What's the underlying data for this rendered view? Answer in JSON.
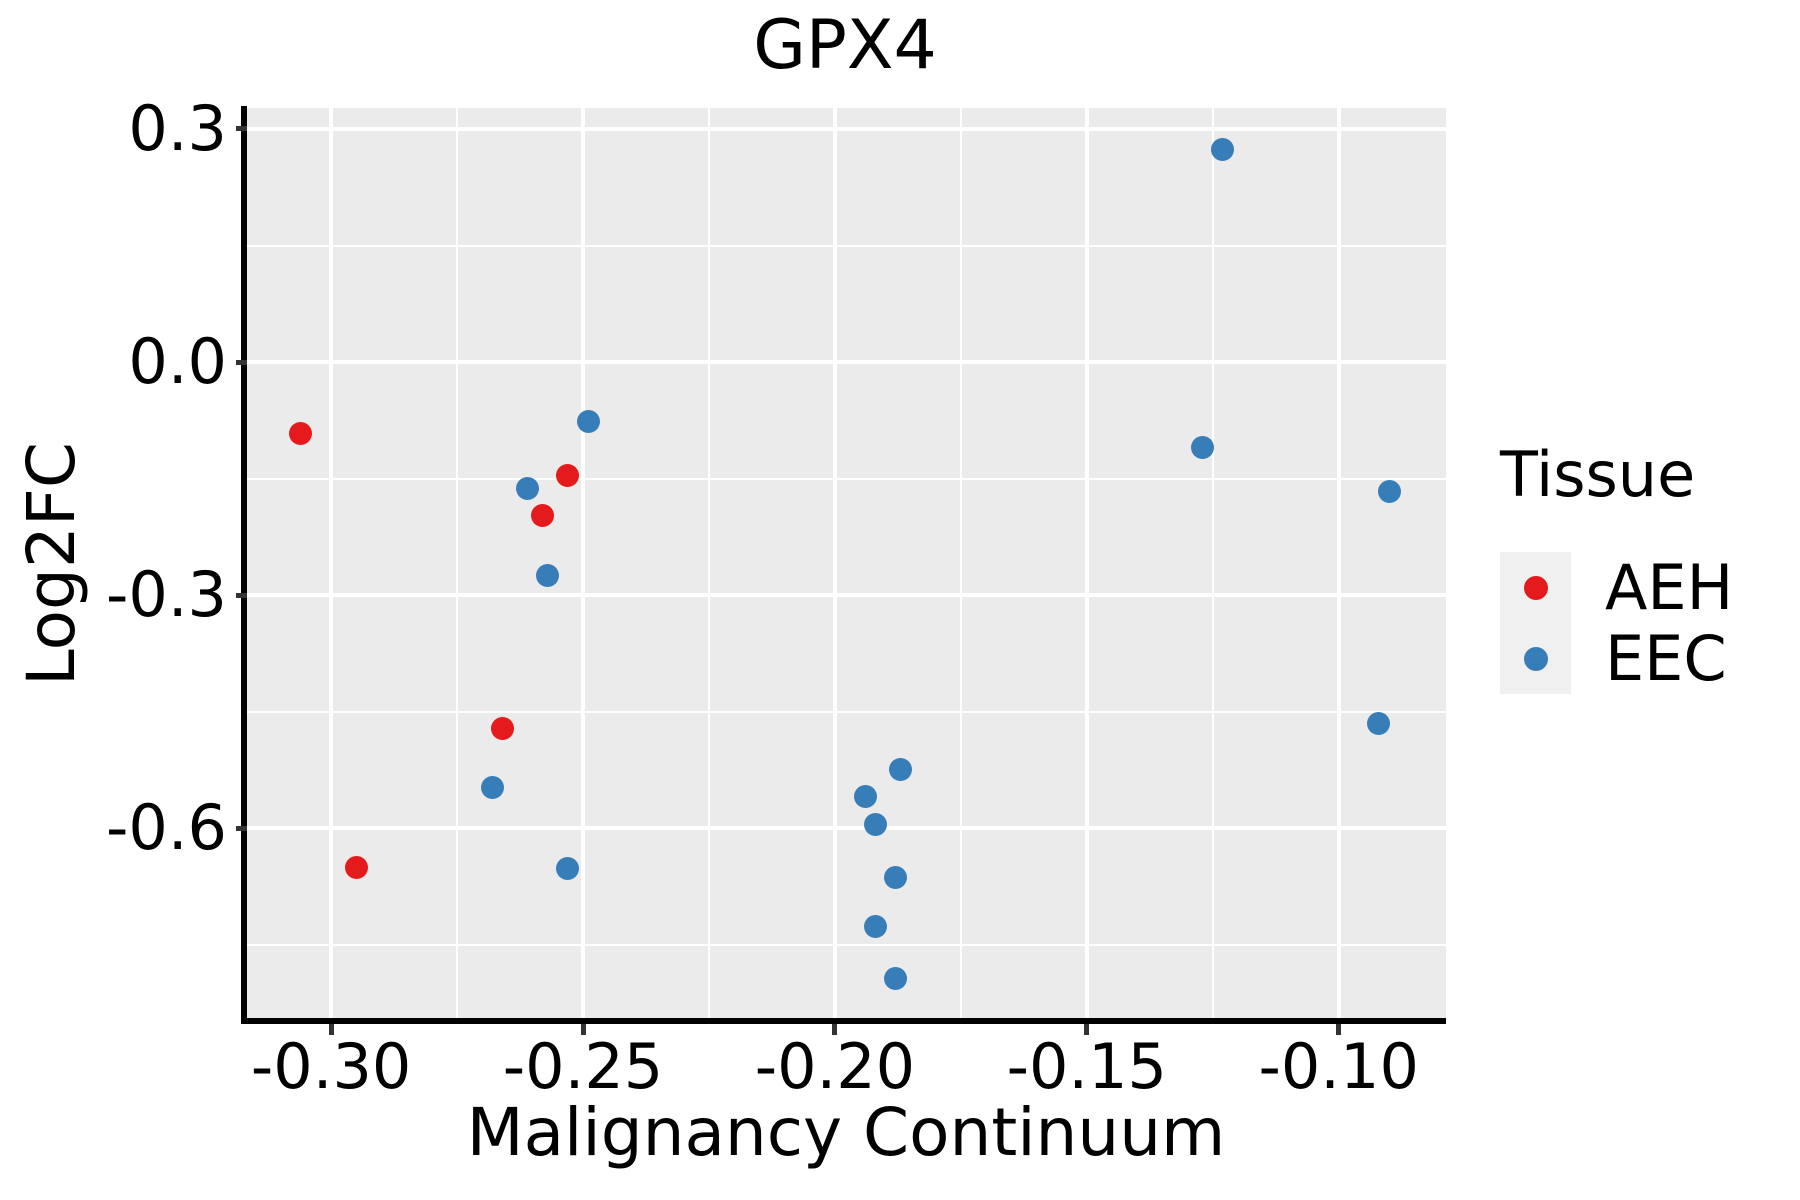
{
  "title": "GPX4",
  "chart_data": {
    "type": "scatter",
    "title": "GPX4",
    "xlabel": "Malignancy Continuum",
    "ylabel": "Log2FC",
    "xlim": [
      -0.3167,
      -0.0787
    ],
    "ylim": [
      -0.848,
      0.327
    ],
    "grid": true,
    "legend_position": "right",
    "x_major_ticks": [
      -0.3,
      -0.25,
      -0.2,
      -0.15,
      -0.1
    ],
    "x_tick_labels": [
      "-0.30",
      "-0.25",
      "-0.20",
      "-0.15",
      "-0.10"
    ],
    "x_minor_ticks": [
      -0.275,
      -0.225,
      -0.175,
      -0.125
    ],
    "y_major_ticks": [
      0.3,
      0.0,
      -0.3,
      -0.6
    ],
    "y_tick_labels": [
      "0.3",
      "0.0",
      "-0.3",
      "-0.6"
    ],
    "y_minor_ticks": [
      0.15,
      -0.15,
      -0.45,
      -0.75
    ],
    "series": [
      {
        "name": "AEH",
        "color": "#E41A1C",
        "points": [
          [
            -0.306,
            -0.092
          ],
          [
            -0.253,
            -0.146
          ],
          [
            -0.258,
            -0.198
          ],
          [
            -0.266,
            -0.472
          ],
          [
            -0.295,
            -0.651
          ]
        ]
      },
      {
        "name": "EEC",
        "color": "#377EB8",
        "points": [
          [
            -0.249,
            -0.077
          ],
          [
            -0.261,
            -0.163
          ],
          [
            -0.257,
            -0.275
          ],
          [
            -0.268,
            -0.547
          ],
          [
            -0.253,
            -0.652
          ],
          [
            -0.187,
            -0.524
          ],
          [
            -0.194,
            -0.559
          ],
          [
            -0.192,
            -0.595
          ],
          [
            -0.188,
            -0.663
          ],
          [
            -0.192,
            -0.727
          ],
          [
            -0.188,
            -0.793
          ],
          [
            -0.123,
            0.274
          ],
          [
            -0.127,
            -0.11
          ],
          [
            -0.09,
            -0.167
          ],
          [
            -0.092,
            -0.465
          ]
        ]
      }
    ]
  },
  "legend": {
    "title": "Tissue",
    "items": [
      {
        "label": "AEH",
        "color": "#E41A1C"
      },
      {
        "label": "EEC",
        "color": "#377EB8"
      }
    ]
  },
  "colors": {
    "panel_background": "#EBEBEB",
    "grid_line": "#FFFFFF",
    "axis_line": "#000000",
    "tick_mark": "#333333",
    "text": "#000000",
    "legend_key_background": "#F0F0F0",
    "aeh": "#E41A1C",
    "eec": "#377EB8"
  }
}
